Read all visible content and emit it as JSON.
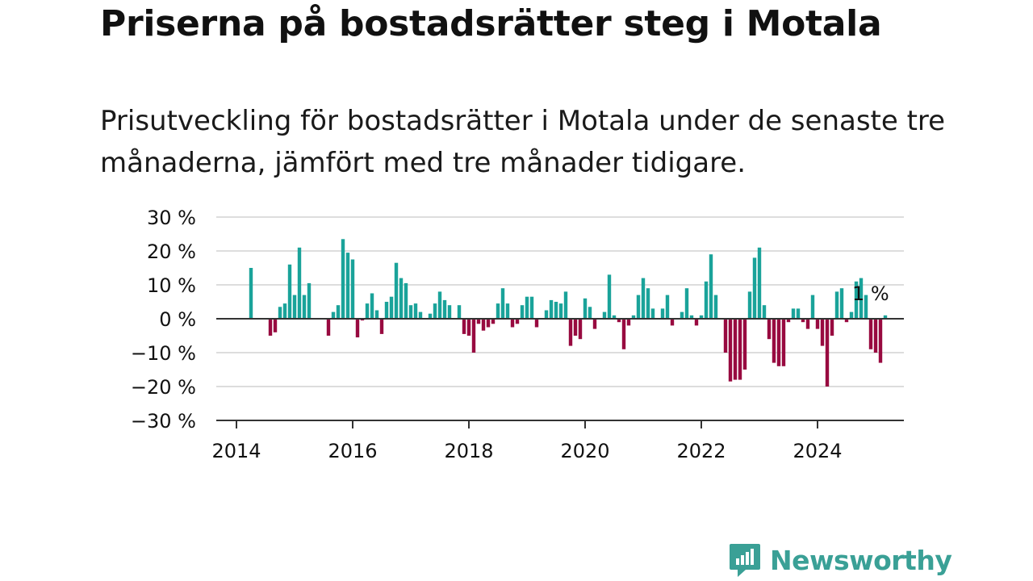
{
  "title": "Priserna på bostadsrätter steg i Motala",
  "subtitle": "Prisutveckling för bostadsrätter i Motala under de senaste tre månaderna, jämfört med tre månader tidigare.",
  "brand": {
    "name": "Newsworthy",
    "icon": "newsworthy-logo-icon"
  },
  "colors": {
    "positive": "#1aa39a",
    "negative": "#980a40",
    "grid": "#dddddd",
    "axis": "#333333",
    "brand": "#3aa096"
  },
  "chart_data": {
    "type": "bar",
    "annotation": "1 %",
    "x_start": "2014-04",
    "frequency": "monthly",
    "xticks": [
      "2014",
      "2016",
      "2018",
      "2020",
      "2022",
      "2024"
    ],
    "ylim": [
      -30,
      30
    ],
    "yticks": [
      "30 %",
      "20 %",
      "10 %",
      "0 %",
      "−10 %",
      "−20 %",
      "−30 %"
    ],
    "grid": true,
    "values": [
      15,
      0,
      0,
      0,
      -5,
      -4,
      3.5,
      4.5,
      16,
      7,
      21,
      7,
      10.5,
      0,
      0,
      0,
      -5,
      2,
      4,
      23.5,
      19.5,
      17.5,
      -5.5,
      -0.5,
      4.5,
      7.5,
      2.5,
      -4.5,
      5,
      6.5,
      16.5,
      12,
      10.5,
      4,
      4.5,
      2,
      0,
      1.5,
      4.5,
      8,
      5.5,
      4,
      0,
      4,
      -4.5,
      -5,
      -10,
      -1.5,
      -3.5,
      -2.5,
      -1.5,
      4.5,
      9,
      4.5,
      -2.5,
      -1.5,
      4,
      6.5,
      6.5,
      -2.5,
      0,
      2.5,
      5.5,
      5,
      4.5,
      8,
      -8,
      -5,
      -6,
      6,
      3.5,
      -3,
      0,
      2,
      13,
      1,
      -1,
      -9,
      -2,
      1,
      7,
      12,
      9,
      3,
      0,
      3,
      7,
      -2,
      0,
      2,
      9,
      1,
      -2,
      1,
      11,
      19,
      7,
      0,
      -10,
      -18.5,
      -18,
      -18,
      -15,
      8,
      18,
      21,
      4,
      -6,
      -13,
      -14,
      -14,
      -1,
      3,
      3,
      -1,
      -3,
      7,
      -3,
      -8,
      -20,
      -5,
      8,
      9,
      -1,
      2,
      11,
      12,
      7,
      -9,
      -10,
      -13,
      1
    ]
  }
}
